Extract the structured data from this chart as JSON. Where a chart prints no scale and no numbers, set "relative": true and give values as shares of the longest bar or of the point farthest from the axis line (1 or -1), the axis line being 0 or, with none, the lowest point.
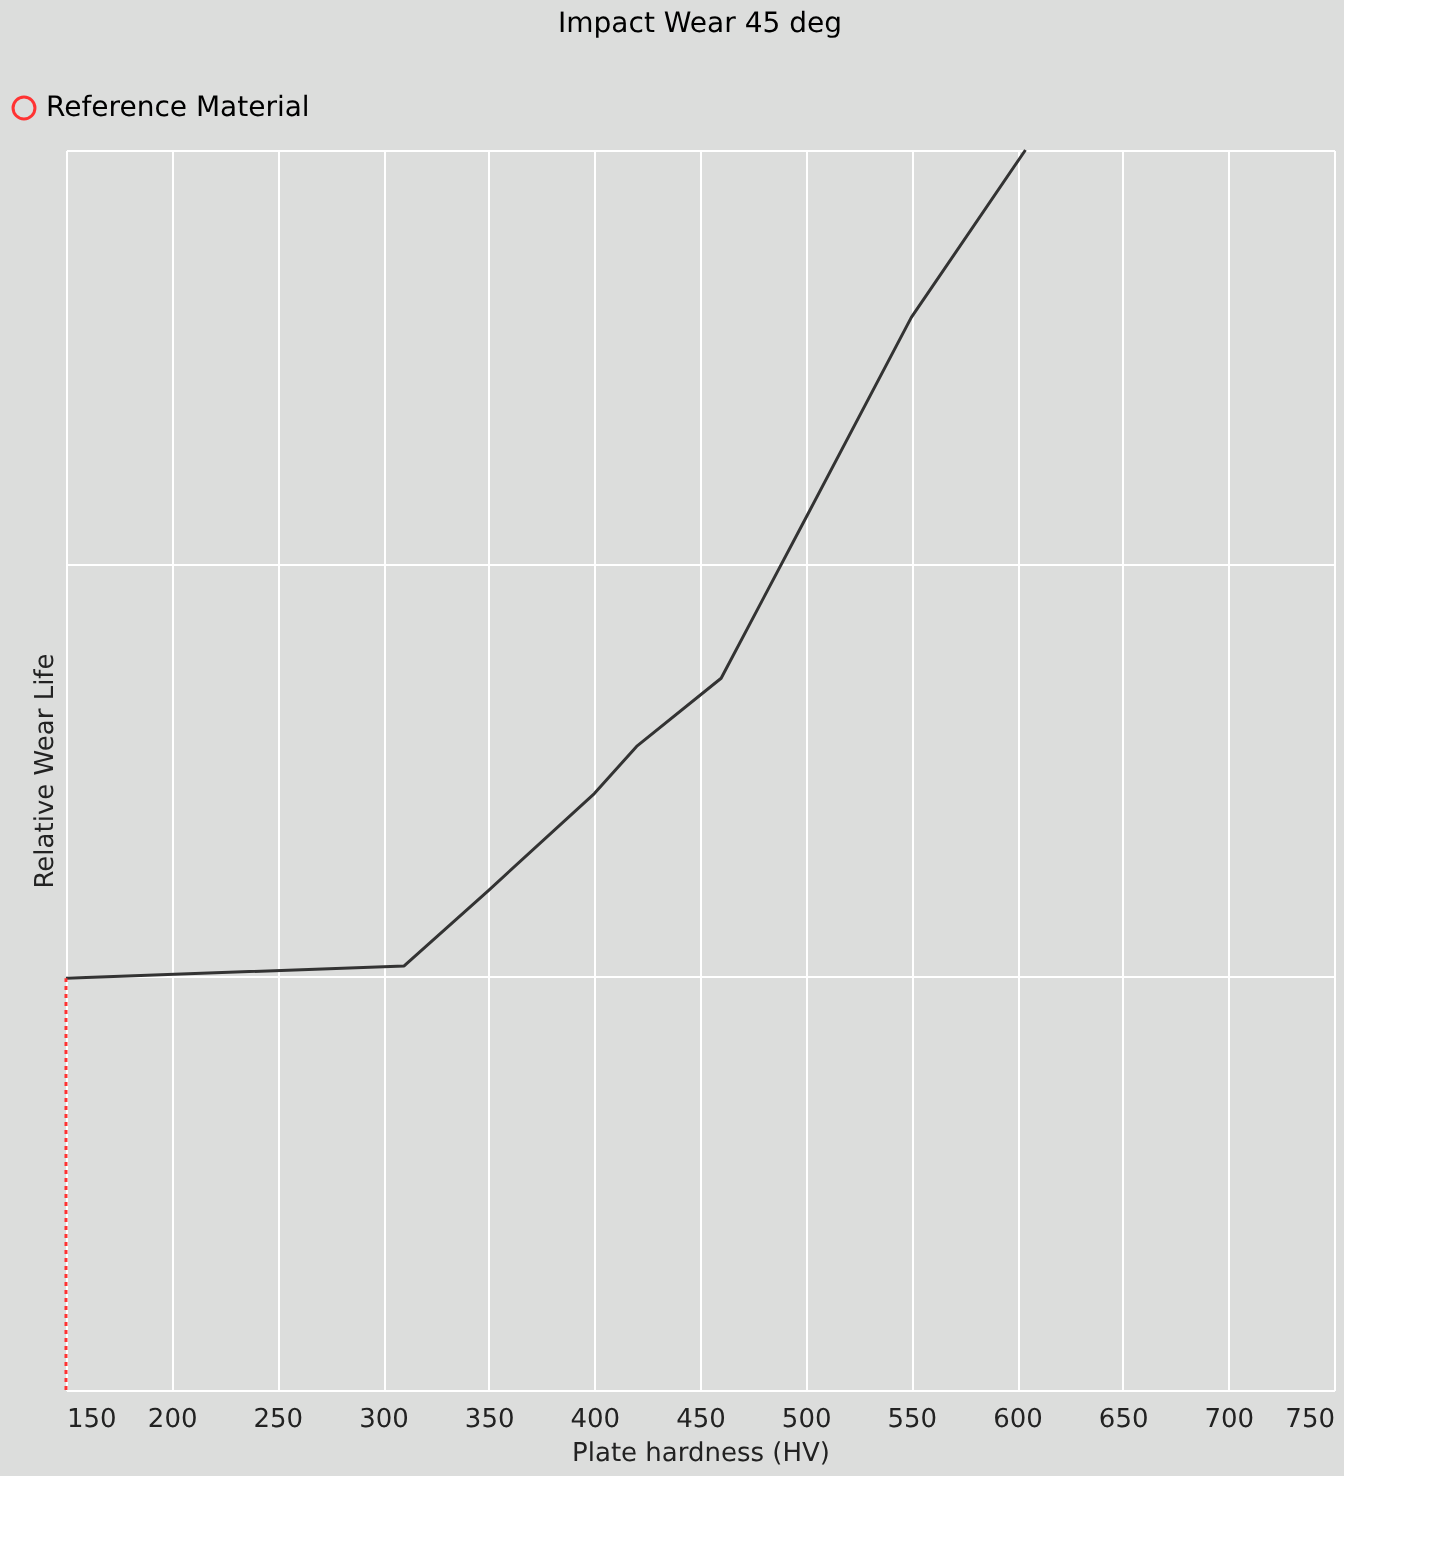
{
  "chart_data": {
    "type": "line",
    "title": "Impact Wear 45 deg",
    "xlabel": "Plate hardness (HV)",
    "ylabel": "Relative Wear Life",
    "relative": true,
    "xlim": [
      150,
      750
    ],
    "xticks": [
      150,
      200,
      250,
      300,
      350,
      400,
      450,
      500,
      550,
      600,
      650,
      700,
      750
    ],
    "grid": true,
    "legend": "top left",
    "marker": "none",
    "series": [
      {
        "color": "#333333",
        "line_style": "solid",
        "x": [
          150,
          310,
          350,
          400,
          420,
          460,
          500,
          550,
          604
        ],
        "values": [
          0.332,
          0.342,
          0.403,
          0.481,
          0.519,
          0.574,
          0.703,
          0.865,
          1.0
        ]
      },
      {
        "name": "Reference Material",
        "color": "#ff3333",
        "line_style": "dotted",
        "x": [
          150,
          150
        ],
        "values": [
          0,
          0.332
        ]
      }
    ]
  }
}
